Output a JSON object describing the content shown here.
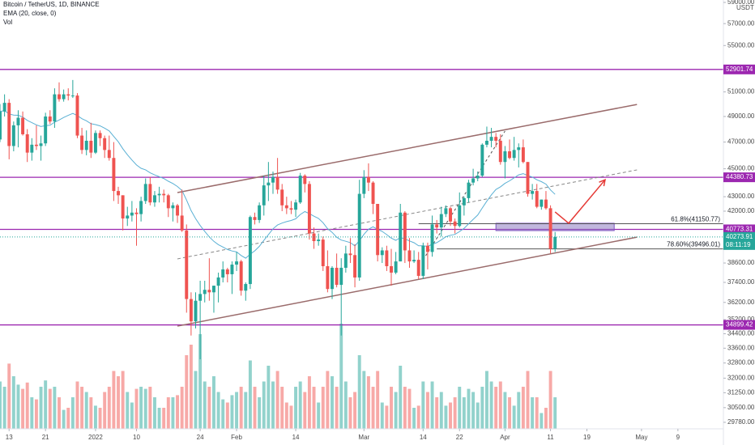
{
  "chart_data": {
    "type": "candlestick",
    "title": "Bitcoin / TetherUS, 1D, BINANCE",
    "indicators": [
      "EMA (20, close, 0)",
      "Vol"
    ],
    "ema_length": 20,
    "currency": "USDT",
    "countdown": "08:11:19",
    "log_scale": true,
    "grid": false,
    "up_color": "#26a69a",
    "down_color": "#ef5350",
    "ema_color": "#5ab0d4",
    "level_color": "#9c27b0",
    "channel_color": "#9a6b6b",
    "arrow_color": "#e53935",
    "x": [
      "2021-12-11",
      "2021-12-12",
      "2021-12-13",
      "2021-12-14",
      "2021-12-15",
      "2021-12-16",
      "2021-12-17",
      "2021-12-18",
      "2021-12-19",
      "2021-12-20",
      "2021-12-21",
      "2021-12-22",
      "2021-12-23",
      "2021-12-24",
      "2021-12-25",
      "2021-12-26",
      "2021-12-27",
      "2021-12-28",
      "2021-12-29",
      "2021-12-30",
      "2021-12-31",
      "2022-01-01",
      "2022-01-02",
      "2022-01-03",
      "2022-01-04",
      "2022-01-05",
      "2022-01-06",
      "2022-01-07",
      "2022-01-08",
      "2022-01-09",
      "2022-01-10",
      "2022-01-11",
      "2022-01-12",
      "2022-01-13",
      "2022-01-14",
      "2022-01-15",
      "2022-01-16",
      "2022-01-17",
      "2022-01-18",
      "2022-01-19",
      "2022-01-20",
      "2022-01-21",
      "2022-01-22",
      "2022-01-23",
      "2022-01-24",
      "2022-01-25",
      "2022-01-26",
      "2022-01-27",
      "2022-01-28",
      "2022-01-29",
      "2022-01-30",
      "2022-01-31",
      "2022-02-01",
      "2022-02-02",
      "2022-02-03",
      "2022-02-04",
      "2022-02-05",
      "2022-02-06",
      "2022-02-07",
      "2022-02-08",
      "2022-02-09",
      "2022-02-10",
      "2022-02-11",
      "2022-02-12",
      "2022-02-13",
      "2022-02-14",
      "2022-02-15",
      "2022-02-16",
      "2022-02-17",
      "2022-02-18",
      "2022-02-19",
      "2022-02-20",
      "2022-02-21",
      "2022-02-22",
      "2022-02-23",
      "2022-02-24",
      "2022-02-25",
      "2022-02-26",
      "2022-02-27",
      "2022-02-28",
      "2022-03-01",
      "2022-03-02",
      "2022-03-03",
      "2022-03-04",
      "2022-03-05",
      "2022-03-06",
      "2022-03-07",
      "2022-03-08",
      "2022-03-09",
      "2022-03-10",
      "2022-03-11",
      "2022-03-12",
      "2022-03-13",
      "2022-03-14",
      "2022-03-15",
      "2022-03-16",
      "2022-03-17",
      "2022-03-18",
      "2022-03-19",
      "2022-03-20",
      "2022-03-21",
      "2022-03-22",
      "2022-03-23",
      "2022-03-24",
      "2022-03-25",
      "2022-03-26",
      "2022-03-27",
      "2022-03-28",
      "2022-03-29",
      "2022-03-30",
      "2022-03-31",
      "2022-04-01",
      "2022-04-02",
      "2022-04-03",
      "2022-04-04",
      "2022-04-05",
      "2022-04-06",
      "2022-04-07",
      "2022-04-08",
      "2022-04-09",
      "2022-04-10",
      "2022-04-11",
      "2022-04-12"
    ],
    "open": [
      47200,
      49400,
      50100,
      46700,
      48300,
      48900,
      47600,
      46200,
      46800,
      46700,
      46900,
      49000,
      48600,
      50800,
      50400,
      50800,
      50700,
      50700,
      47500,
      46400,
      47100,
      46200,
      47700,
      47300,
      46400,
      45800,
      43400,
      43100,
      41500,
      41700,
      41900,
      41800,
      42700,
      43900,
      42600,
      43100,
      43200,
      43100,
      42200,
      42400,
      41700,
      40700,
      36400,
      35100,
      36300,
      36700,
      36950,
      36800,
      37200,
      37700,
      38200,
      37900,
      38500,
      38700,
      36900,
      37300,
      41600,
      41400,
      42400,
      43800,
      44000,
      44400,
      43500,
      42400,
      42200,
      42100,
      42600,
      44500,
      43900,
      40500,
      40000,
      40100,
      38400,
      37000,
      38300,
      37250,
      38300,
      39200,
      39100,
      37700,
      43200,
      44400,
      44000,
      42500,
      39100,
      39400,
      38400,
      38000,
      38700,
      41900,
      39400,
      38700,
      38800,
      37800,
      39700,
      39300,
      41100,
      40900,
      41800,
      42200,
      41300,
      41000,
      42400,
      42900,
      44000,
      44300,
      44500,
      46800,
      47100,
      47400,
      47100,
      45500,
      46300,
      45800,
      46400,
      46600,
      45500,
      43200,
      43400,
      42300,
      42800,
      42200,
      39500
    ],
    "high": [
      50000,
      50800,
      50400,
      48600,
      49500,
      49400,
      48000,
      47300,
      48300,
      47500,
      49300,
      49500,
      51300,
      51800,
      51200,
      51300,
      52000,
      50900,
      48100,
      47900,
      48500,
      47900,
      47900,
      47500,
      47500,
      47000,
      43700,
      43100,
      42300,
      42700,
      42200,
      43000,
      44300,
      44400,
      43400,
      43700,
      43500,
      43200,
      42600,
      42500,
      43500,
      41100,
      36800,
      36800,
      37500,
      37500,
      38900,
      37200,
      38000,
      38700,
      38300,
      38700,
      39300,
      38800,
      37400,
      41700,
      41900,
      42600,
      44500,
      45500,
      44800,
      45800,
      43900,
      43000,
      42700,
      42800,
      44700,
      44600,
      44100,
      40900,
      40500,
      40300,
      39400,
      38400,
      39200,
      38900,
      39700,
      40200,
      39800,
      44200,
      44900,
      45400,
      44100,
      42500,
      39600,
      39700,
      39500,
      39300,
      42500,
      42000,
      40200,
      39400,
      39300,
      39900,
      39900,
      41700,
      41400,
      42300,
      42400,
      42300,
      41500,
      43300,
      43000,
      44200,
      45000,
      44800,
      46900,
      48200,
      48100,
      47700,
      47600,
      46700,
      47200,
      47400,
      46900,
      47200,
      45500,
      43900,
      43900,
      42800,
      43400,
      42400,
      40600
    ],
    "low": [
      47000,
      49000,
      45700,
      46300,
      46600,
      47500,
      45500,
      45600,
      46400,
      45600,
      46700,
      48400,
      48100,
      50200,
      50200,
      50300,
      50500,
      47300,
      46100,
      46000,
      45800,
      46100,
      46700,
      45800,
      45600,
      42700,
      42500,
      40700,
      41000,
      41300,
      39700,
      41300,
      42500,
      42400,
      42300,
      42600,
      42600,
      41600,
      41300,
      41200,
      40600,
      35600,
      34300,
      34700,
      33000,
      36200,
      36300,
      35600,
      36200,
      37400,
      37400,
      36700,
      38100,
      36600,
      36300,
      37000,
      41100,
      41200,
      41700,
      42700,
      43200,
      43200,
      42000,
      41800,
      41800,
      41600,
      42500,
      43300,
      40100,
      39500,
      39700,
      38100,
      36800,
      36400,
      37100,
      34300,
      38000,
      38600,
      37100,
      37500,
      42900,
      43400,
      41800,
      38700,
      38600,
      38100,
      37200,
      37900,
      38700,
      38600,
      38300,
      38600,
      37600,
      37600,
      38200,
      39000,
      40500,
      40300,
      41600,
      41000,
      40500,
      40900,
      41700,
      42600,
      43800,
      44100,
      44400,
      46600,
      46600,
      46600,
      45300,
      44300,
      45700,
      45600,
      45100,
      45400,
      43000,
      42800,
      42200,
      42100,
      42100,
      39200,
      39300
    ],
    "close": [
      49400,
      50100,
      46700,
      48300,
      48900,
      47600,
      46200,
      46800,
      46700,
      46900,
      49000,
      48600,
      50800,
      50400,
      50800,
      50700,
      50700,
      47500,
      46400,
      47100,
      46200,
      47700,
      47300,
      46400,
      45800,
      43400,
      43100,
      41500,
      41700,
      41900,
      41800,
      42700,
      43900,
      42600,
      43100,
      43200,
      43100,
      42200,
      42400,
      41700,
      40700,
      36400,
      35100,
      36300,
      36700,
      36950,
      36800,
      37200,
      37700,
      38200,
      37900,
      38500,
      38700,
      36900,
      37300,
      41600,
      41400,
      42400,
      43800,
      44000,
      44400,
      43500,
      42400,
      42200,
      42100,
      42600,
      44500,
      43900,
      40500,
      40000,
      40100,
      38400,
      37000,
      38300,
      37250,
      38300,
      39200,
      39100,
      37700,
      43200,
      44400,
      44000,
      42500,
      39100,
      39400,
      38400,
      38000,
      38700,
      41900,
      39400,
      38700,
      38800,
      37800,
      39700,
      39300,
      41100,
      40900,
      41800,
      42200,
      41300,
      41000,
      42400,
      42900,
      44000,
      44300,
      44500,
      46800,
      47100,
      47400,
      47100,
      45500,
      46300,
      45800,
      46400,
      46600,
      45500,
      43200,
      43400,
      42300,
      42800,
      42200,
      39500,
      40273.91
    ],
    "volume": [
      45,
      40,
      62,
      50,
      42,
      38,
      44,
      30,
      28,
      40,
      46,
      38,
      40,
      30,
      18,
      20,
      30,
      45,
      40,
      35,
      30,
      22,
      20,
      35,
      40,
      55,
      50,
      55,
      35,
      25,
      38,
      40,
      38,
      40,
      30,
      20,
      20,
      30,
      30,
      32,
      40,
      70,
      80,
      55,
      90,
      45,
      40,
      50,
      35,
      28,
      25,
      32,
      35,
      40,
      35,
      65,
      40,
      30,
      45,
      60,
      45,
      55,
      40,
      25,
      22,
      40,
      45,
      35,
      50,
      40,
      25,
      40,
      55,
      50,
      40,
      100,
      45,
      30,
      35,
      70,
      55,
      50,
      40,
      55,
      25,
      22,
      40,
      35,
      60,
      40,
      38,
      20,
      22,
      45,
      35,
      45,
      30,
      35,
      22,
      25,
      30,
      40,
      30,
      38,
      35,
      25,
      40,
      55,
      45,
      40,
      45,
      35,
      30,
      22,
      35,
      40,
      55,
      30,
      30,
      15,
      20,
      55,
      30
    ],
    "volume_lim": [
      0,
      100
    ],
    "xlim": [
      "2021-12-11",
      "2022-05-19"
    ],
    "xticks": [
      {
        "value": "2021-12-13",
        "label": "13"
      },
      {
        "value": "2021-12-21",
        "label": "21"
      },
      {
        "value": "2022-01-01",
        "label": "2022"
      },
      {
        "value": "2022-01-10",
        "label": "10"
      },
      {
        "value": "2022-01-24",
        "label": "24"
      },
      {
        "value": "2022-02-01",
        "label": "Feb"
      },
      {
        "value": "2022-02-14",
        "label": "14"
      },
      {
        "value": "2022-03-01",
        "label": "Mar"
      },
      {
        "value": "2022-03-14",
        "label": "14"
      },
      {
        "value": "2022-03-22",
        "label": "22"
      },
      {
        "value": "2022-04-01",
        "label": "Apr"
      },
      {
        "value": "2022-04-11",
        "label": "11"
      },
      {
        "value": "2022-04-19",
        "label": "19"
      },
      {
        "value": "2022-05-01",
        "label": "May"
      },
      {
        "value": "2022-05-09",
        "label": "9"
      }
    ],
    "ylim": [
      29466,
      59234
    ],
    "yticks": [
      {
        "value": 59000,
        "label": "59000.00"
      },
      {
        "value": 57000,
        "label": "57000.00"
      },
      {
        "value": 55000,
        "label": "55000.00"
      },
      {
        "value": 51000,
        "label": "51000.00"
      },
      {
        "value": 49000,
        "label": "49000.00"
      },
      {
        "value": 47000,
        "label": "47000.00"
      },
      {
        "value": 45000,
        "label": "45000.00"
      },
      {
        "value": 43000,
        "label": "43000.00"
      },
      {
        "value": 42000,
        "label": "42000.00"
      },
      {
        "value": 38600,
        "label": "38600.00"
      },
      {
        "value": 37400,
        "label": "37400.00"
      },
      {
        "value": 36200,
        "label": "36200.00"
      },
      {
        "value": 35200,
        "label": "35200.00"
      },
      {
        "value": 34400,
        "label": "34400.00"
      },
      {
        "value": 33600,
        "label": "33600.00"
      },
      {
        "value": 32800,
        "label": "32800.00"
      },
      {
        "value": 32000,
        "label": "32000.00"
      },
      {
        "value": 31250,
        "label": "31250.00"
      },
      {
        "value": 30500,
        "label": "30500.00"
      },
      {
        "value": 29780,
        "label": "29780.00"
      }
    ],
    "levels": [
      52901.74,
      44380.73,
      40773.31,
      34899.42
    ],
    "fib_levels": [
      {
        "value": 41150.77,
        "label": "61.8%(41150.77)",
        "start": "2022-03-13"
      },
      {
        "value": 39496.01,
        "label": "78.60%(39496.01)",
        "start": "2022-03-17"
      }
    ],
    "channel": {
      "upper": [
        [
          "2022-01-19",
          43290
        ],
        [
          "2022-04-30",
          49970
        ]
      ],
      "middle": [
        [
          "2022-01-19",
          38860
        ],
        [
          "2022-04-30",
          44920
        ]
      ],
      "lower": [
        [
          "2022-01-19",
          34830
        ],
        [
          "2022-04-30",
          40260
        ]
      ]
    },
    "fib_trend": [
      [
        "2022-03-14",
        38800
      ],
      [
        "2022-04-01",
        47850
      ]
    ],
    "zone": [
      [
        "2022-03-30",
        41180
      ],
      [
        "2022-04-25",
        40690
      ]
    ],
    "arrow": [
      [
        "2022-04-12",
        41950
      ],
      [
        "2022-04-15",
        41180
      ],
      [
        "2022-04-23",
        44200
      ]
    ]
  }
}
